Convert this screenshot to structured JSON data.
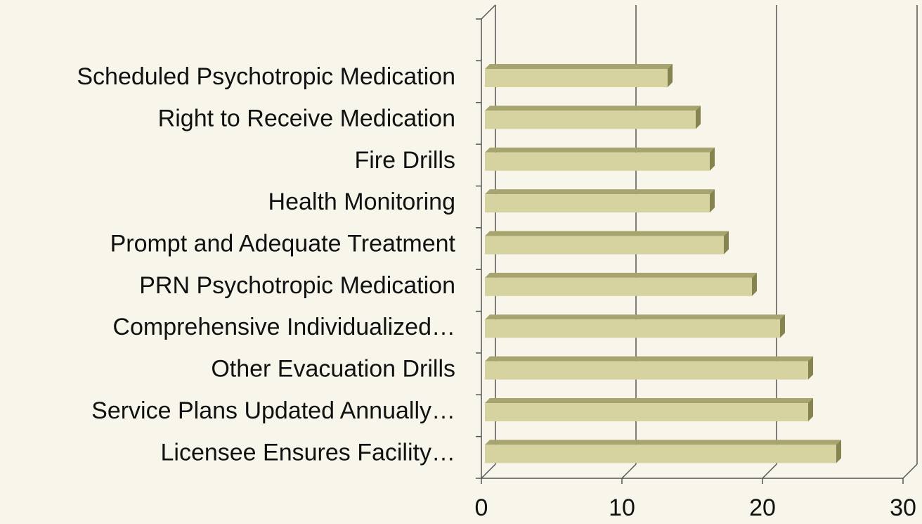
{
  "chart_data": {
    "type": "bar3d_horizontal",
    "categories": [
      "Scheduled Psychotropic Medication",
      "Right to Receive Medication",
      "Fire Drills",
      "Health Monitoring",
      "Prompt and Adequate Treatment",
      "PRN Psychotropic Medication",
      "Comprehensive Individualized…",
      "Other Evacuation Drills",
      "Service Plans Updated Annually…",
      "Licensee Ensures Facility…"
    ],
    "values": [
      13,
      15,
      16,
      16,
      17,
      19,
      21,
      23,
      23,
      25
    ],
    "color": "#d6d3a0",
    "xlim": [
      0,
      30
    ],
    "xticks": [
      0,
      10,
      20,
      30
    ],
    "grid": true
  }
}
